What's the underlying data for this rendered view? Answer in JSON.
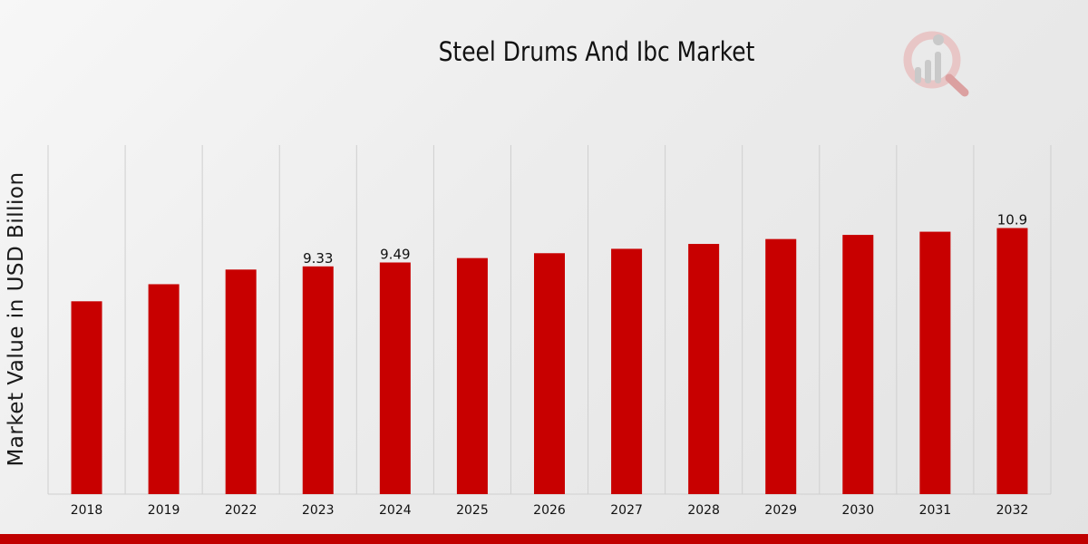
{
  "chart_data": {
    "type": "bar",
    "title": "Steel Drums And Ibc Market",
    "xlabel": "",
    "ylabel": "Market Value in USD Billion",
    "categories": [
      "2018",
      "2019",
      "2022",
      "2023",
      "2024",
      "2025",
      "2026",
      "2027",
      "2028",
      "2029",
      "2030",
      "2031",
      "2032"
    ],
    "values": [
      7.9,
      8.6,
      9.2,
      9.33,
      9.49,
      9.67,
      9.87,
      10.05,
      10.25,
      10.45,
      10.62,
      10.75,
      10.9
    ],
    "data_labels": {
      "3": "9.33",
      "4": "9.49",
      "12": "10.9"
    },
    "ylim": [
      0,
      14.3
    ],
    "grid": "vertical separators",
    "bar_color": "#c80000"
  },
  "colors": {
    "accent": "#c80000",
    "logo": "#d9a3a3"
  },
  "logo": {
    "icon": "magnifier-bar-chart-icon"
  }
}
